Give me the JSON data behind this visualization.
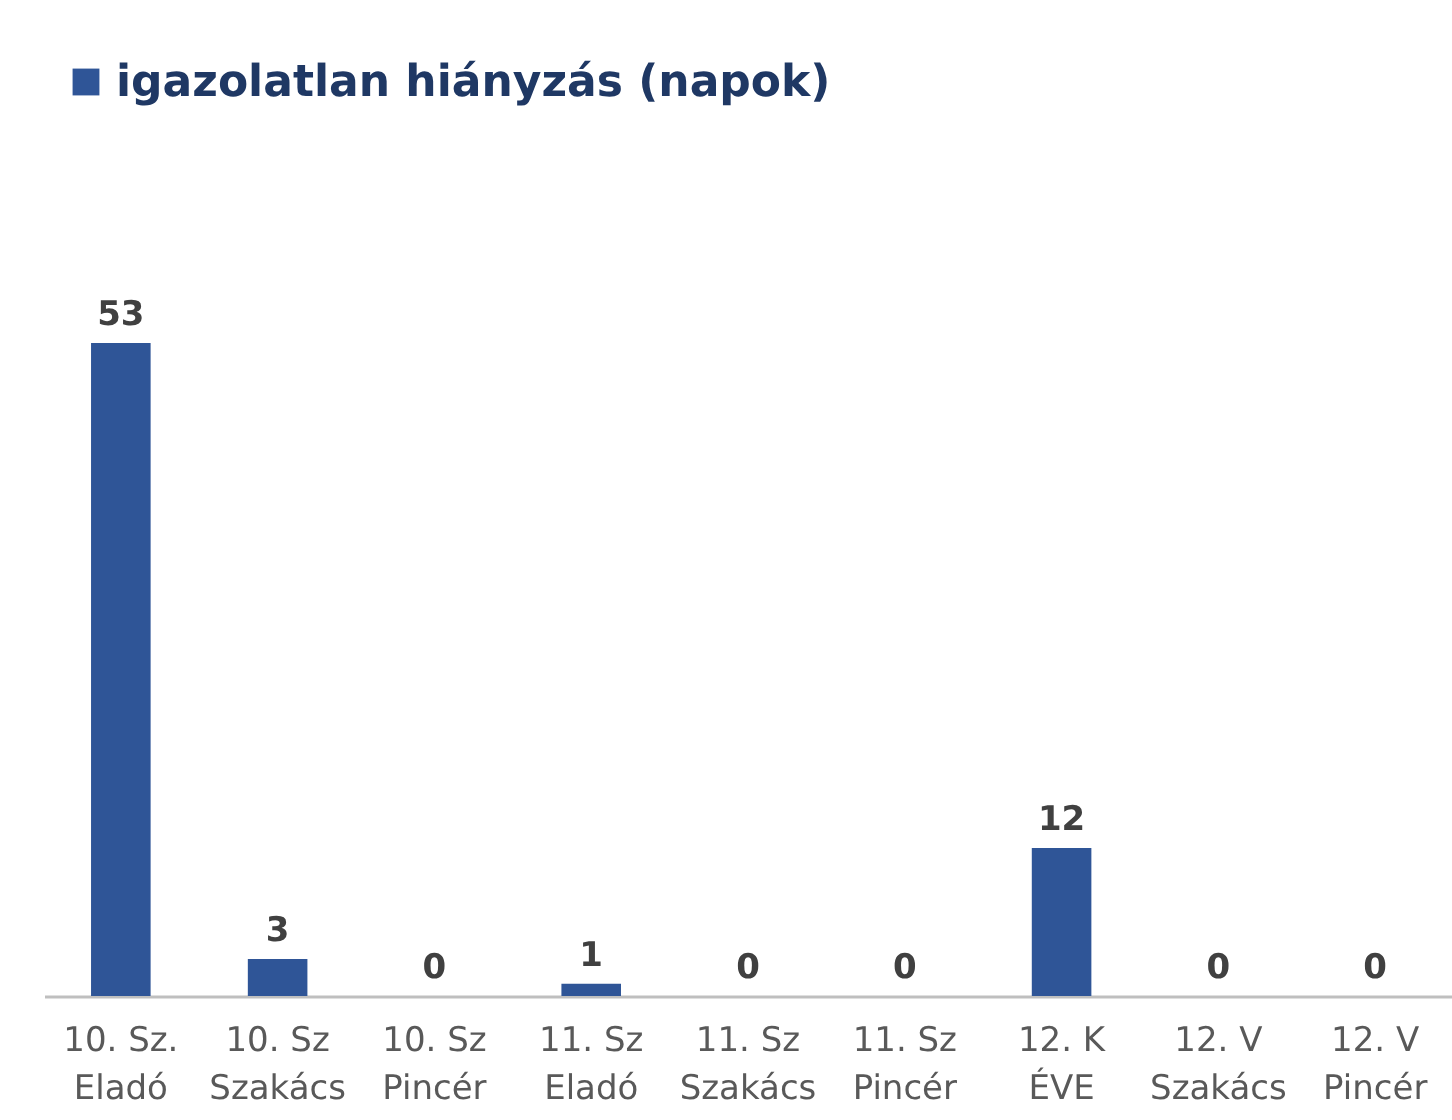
{
  "chart_data": {
    "type": "bar",
    "categories": [
      "10. Sz. Eladó",
      "10. Sz Szakács",
      "10. Sz Pincér",
      "11. Sz Eladó",
      "11. Sz Szakács",
      "11. Sz Pincér",
      "12. K ÉVE",
      "12. V Szakács",
      "12. V Pincér"
    ],
    "series": [
      {
        "name": "igazolatlan hiányzás (napok)",
        "color": "#2f5597",
        "values": [
          53,
          3,
          0,
          1,
          0,
          0,
          12,
          0,
          0
        ]
      }
    ],
    "data_labels": true,
    "legend": "top",
    "grid": false
  }
}
